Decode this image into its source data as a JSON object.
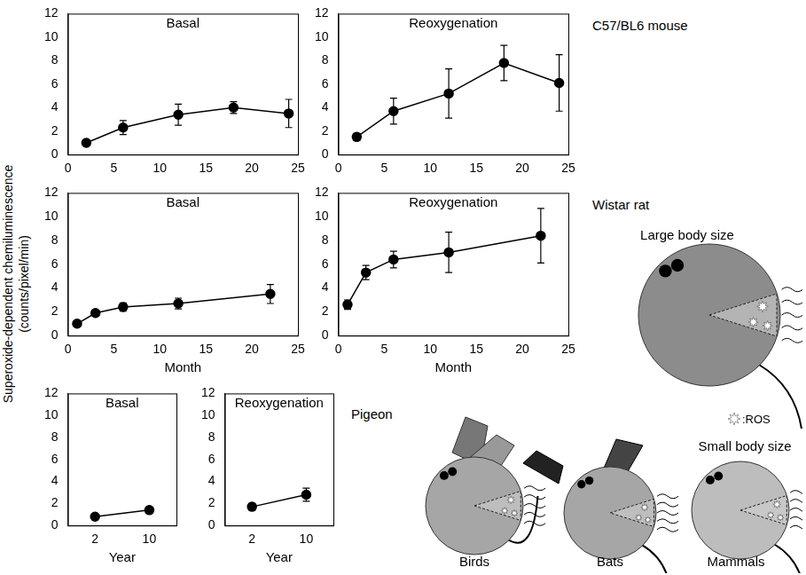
{
  "y_label": "Superoxide-dependent chemiluminescence (counts/pixel/min)",
  "rows": [
    {
      "label": "C57/BL6 mouse"
    },
    {
      "label": "Wistar rat"
    },
    {
      "label": "Pigeon"
    }
  ],
  "illustration": {
    "large": "Large body size",
    "small": "Small body size",
    "birds": "Birds",
    "bats": "Bats",
    "mammals": "Mammals",
    "ros": ":ROS"
  },
  "chart_data": [
    {
      "type": "line",
      "title": "Basal",
      "x": [
        2,
        6,
        12,
        18,
        24
      ],
      "values": [
        1.0,
        2.3,
        3.4,
        4.0,
        3.5
      ],
      "errors": [
        0.1,
        0.6,
        0.9,
        0.5,
        1.2
      ],
      "xlim": [
        0,
        25
      ],
      "xticks": [
        0,
        5,
        10,
        15,
        20,
        25
      ],
      "ylim": [
        0,
        12
      ],
      "yticks": [
        0,
        2,
        4,
        6,
        8,
        10,
        12
      ],
      "color": "#000000",
      "marker": "circle",
      "line_style": "solid",
      "grid": false
    },
    {
      "type": "line",
      "title": "Reoxygenation",
      "x": [
        2,
        6,
        12,
        18,
        24
      ],
      "values": [
        1.5,
        3.7,
        5.2,
        7.8,
        6.1
      ],
      "errors": [
        0.3,
        1.1,
        2.1,
        1.5,
        2.4
      ],
      "xlim": [
        0,
        25
      ],
      "xticks": [
        0,
        5,
        10,
        15,
        20,
        25
      ],
      "ylim": [
        0,
        12
      ],
      "yticks": [
        0,
        2,
        4,
        6,
        8,
        10,
        12
      ],
      "color": "#000000",
      "marker": "circle",
      "line_style": "solid",
      "grid": false
    },
    {
      "type": "line",
      "title": "Basal",
      "x_label": "Month",
      "x": [
        1,
        3,
        6,
        12,
        22
      ],
      "values": [
        1.0,
        1.9,
        2.4,
        2.7,
        3.5
      ],
      "errors": [
        0.1,
        0.15,
        0.35,
        0.45,
        0.8
      ],
      "xlim": [
        0,
        25
      ],
      "xticks": [
        0,
        5,
        10,
        15,
        20,
        25
      ],
      "ylim": [
        0,
        12
      ],
      "yticks": [
        0,
        2,
        4,
        6,
        8,
        10,
        12
      ],
      "color": "#000000",
      "marker": "circle",
      "line_style": "solid",
      "grid": false
    },
    {
      "type": "line",
      "title": "Reoxygenation",
      "x_label": "Month",
      "x": [
        1,
        3,
        6,
        12,
        22
      ],
      "values": [
        2.6,
        5.3,
        6.4,
        7.0,
        8.4
      ],
      "errors": [
        0.4,
        0.6,
        0.7,
        1.7,
        2.3
      ],
      "xlim": [
        0,
        25
      ],
      "xticks": [
        0,
        5,
        10,
        15,
        20,
        25
      ],
      "ylim": [
        0,
        12
      ],
      "yticks": [
        0,
        2,
        4,
        6,
        8,
        10,
        12
      ],
      "color": "#000000",
      "marker": "circle",
      "line_style": "solid",
      "grid": false
    },
    {
      "type": "line",
      "title": "Basal",
      "x_label": "Year",
      "x": [
        2,
        10
      ],
      "values": [
        0.8,
        1.4
      ],
      "errors": [
        0.1,
        0.15
      ],
      "xlim": [
        -2,
        14
      ],
      "xticks": [
        2,
        10
      ],
      "ylim": [
        0,
        12
      ],
      "yticks": [
        0,
        2,
        4,
        6,
        8,
        10,
        12
      ],
      "color": "#000000",
      "marker": "circle",
      "line_style": "solid",
      "grid": false
    },
    {
      "type": "line",
      "title": "Reoxygenation",
      "x_label": "Year",
      "x": [
        2,
        10
      ],
      "values": [
        1.7,
        2.8
      ],
      "errors": [
        0.3,
        0.6
      ],
      "xlim": [
        -2,
        14
      ],
      "xticks": [
        2,
        10
      ],
      "ylim": [
        0,
        12
      ],
      "yticks": [
        0,
        2,
        4,
        6,
        8,
        10,
        12
      ],
      "color": "#000000",
      "marker": "circle",
      "line_style": "solid",
      "grid": false
    }
  ]
}
